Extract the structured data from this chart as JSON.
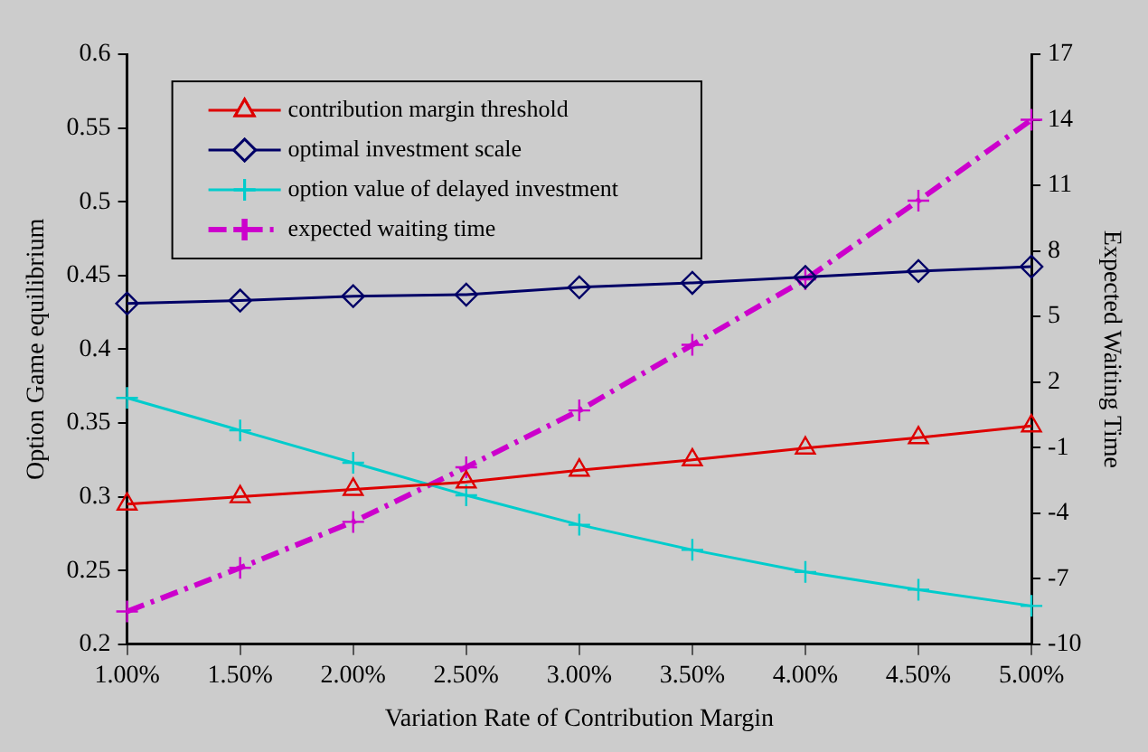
{
  "chart_data": {
    "type": "line",
    "xlabel": "Variation Rate of Contribution Margin",
    "ylabel": "Option Game equilibrium",
    "y2label": "Expected Waiting Time",
    "categories": [
      "1.00%",
      "1.50%",
      "2.00%",
      "2.50%",
      "3.00%",
      "3.50%",
      "4.00%",
      "4.50%",
      "5.00%"
    ],
    "series": [
      {
        "name": "contribution margin threshold",
        "color": "#dd0000",
        "marker": "triangle",
        "line_style": "solid",
        "values": [
          0.295,
          0.3,
          0.305,
          0.31,
          0.318,
          0.325,
          0.333,
          0.34,
          0.348
        ]
      },
      {
        "name": "optimal investment scale",
        "color": "#000066",
        "marker": "diamond",
        "line_style": "solid",
        "values": [
          0.431,
          0.433,
          0.436,
          0.437,
          0.442,
          0.445,
          0.449,
          0.453,
          0.456
        ]
      },
      {
        "name": "option value of delayed investment",
        "color": "#00cccc",
        "marker": "cross",
        "line_style": "solid",
        "values": [
          0.367,
          0.345,
          0.323,
          0.301,
          0.281,
          0.264,
          0.249,
          0.237,
          0.226
        ]
      },
      {
        "name": "expected waiting time",
        "color": "#cc00cc",
        "marker": "cross",
        "line_style": "dashed",
        "axis": "y2",
        "values": [
          -8.5,
          -6.5,
          -4.4,
          -1.9,
          0.7,
          3.7,
          6.7,
          10.3,
          14.0
        ]
      }
    ],
    "ylim": [
      0.2,
      0.6
    ],
    "yticks": [
      0.2,
      0.25,
      0.3,
      0.35,
      0.4,
      0.45,
      0.5,
      0.55,
      0.6
    ],
    "y2lim": [
      -10,
      17
    ],
    "y2ticks": [
      -10,
      -7,
      -4,
      -1,
      2,
      5,
      8,
      11,
      14,
      17
    ],
    "grid": false,
    "legend": "top left"
  }
}
